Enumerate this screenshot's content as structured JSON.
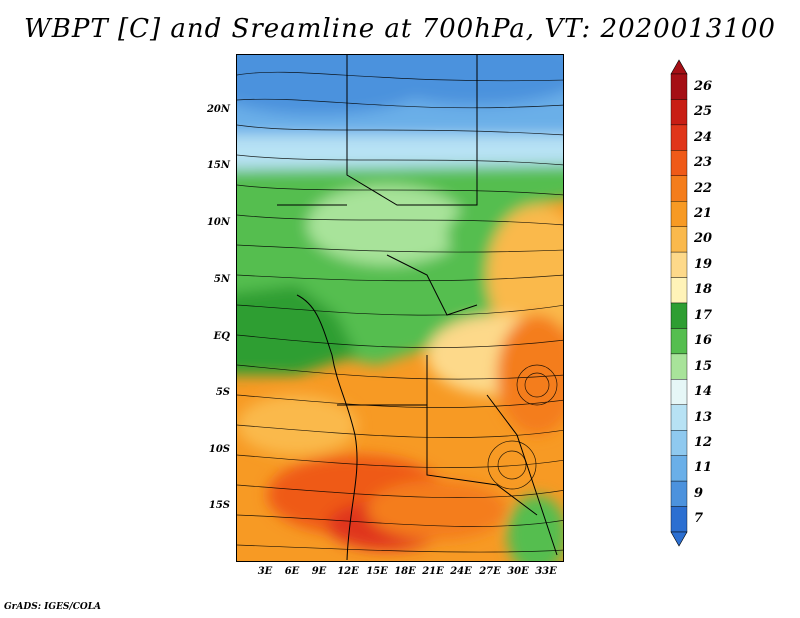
{
  "title": "WBPT [C] and Sreamline at 700hPa, VT: 2020013100",
  "y_axis": {
    "labels": [
      "20N",
      "15N",
      "10N",
      "5N",
      "EQ",
      "5S",
      "10S",
      "15S"
    ]
  },
  "x_axis": {
    "labels": [
      "3E",
      "6E",
      "9E",
      "12E",
      "15E",
      "18E",
      "21E",
      "24E",
      "27E",
      "30E",
      "33E"
    ]
  },
  "colorbar": {
    "labels": [
      "26",
      "25",
      "24",
      "23",
      "22",
      "21",
      "20",
      "19",
      "18",
      "17",
      "16",
      "15",
      "14",
      "13",
      "12",
      "11",
      "9",
      "7"
    ],
    "colors": [
      "#a50f15",
      "#c81e15",
      "#e0361a",
      "#ef5a18",
      "#f47d1c",
      "#f79a24",
      "#fab94c",
      "#fdd98a",
      "#fff3b8",
      "#2e9e32",
      "#55be4f",
      "#a8e39a",
      "#e6f7f7",
      "#b7e2f4",
      "#8fc9ef",
      "#6aafe8",
      "#4c92dd",
      "#2c6fd1"
    ]
  },
  "credit": "GrADS: IGES/COLA"
}
